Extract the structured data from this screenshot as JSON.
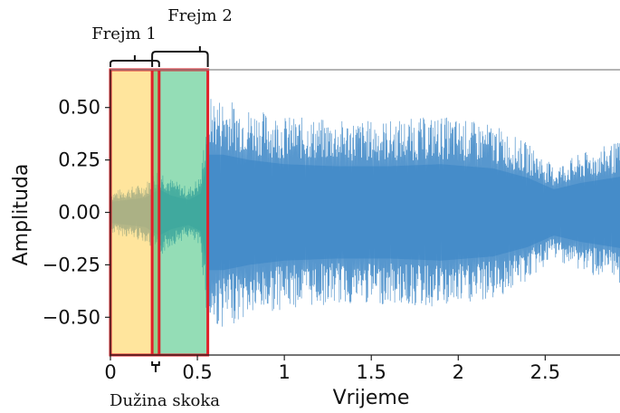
{
  "chart_data": {
    "type": "line",
    "xlabel": "Vrijeme",
    "ylabel": "Amplituda",
    "xlim": [
      0,
      2.93
    ],
    "ylim": [
      -0.68,
      0.68
    ],
    "xticks": [
      {
        "value": 0,
        "label": "0"
      },
      {
        "value": 0.5,
        "label": "0.5"
      },
      {
        "value": 1,
        "label": "1"
      },
      {
        "value": 1.5,
        "label": "1.5"
      },
      {
        "value": 2,
        "label": "2"
      },
      {
        "value": 2.5,
        "label": "2.5"
      }
    ],
    "yticks": [
      {
        "value": 0.5,
        "label": "0.50"
      },
      {
        "value": 0.25,
        "label": "0.25"
      },
      {
        "value": 0,
        "label": "0.00"
      },
      {
        "value": -0.25,
        "label": "−0.25"
      },
      {
        "value": -0.5,
        "label": "−0.50"
      }
    ],
    "waveform": {
      "color": "#3a85c6",
      "envelope": [
        {
          "t": 0.0,
          "amp": 0.1
        },
        {
          "t": 0.1,
          "amp": 0.12
        },
        {
          "t": 0.2,
          "amp": 0.14
        },
        {
          "t": 0.28,
          "amp": 0.22
        },
        {
          "t": 0.35,
          "amp": 0.16
        },
        {
          "t": 0.45,
          "amp": 0.12
        },
        {
          "t": 0.52,
          "amp": 0.18
        },
        {
          "t": 0.56,
          "amp": 0.55
        },
        {
          "t": 0.65,
          "amp": 0.55
        },
        {
          "t": 0.8,
          "amp": 0.5
        },
        {
          "t": 1.0,
          "amp": 0.46
        },
        {
          "t": 1.3,
          "amp": 0.44
        },
        {
          "t": 1.6,
          "amp": 0.44
        },
        {
          "t": 1.9,
          "amp": 0.46
        },
        {
          "t": 2.2,
          "amp": 0.42
        },
        {
          "t": 2.4,
          "amp": 0.33
        },
        {
          "t": 2.55,
          "amp": 0.22
        },
        {
          "t": 2.7,
          "amp": 0.28
        },
        {
          "t": 2.93,
          "amp": 0.34
        }
      ]
    },
    "frames": [
      {
        "name": "Frejm 1",
        "x_start": 0.0,
        "x_end": 0.28,
        "fill": "#ffd04d"
      },
      {
        "name": "Frejm 2",
        "x_start": 0.24,
        "x_end": 0.56,
        "fill": "#3cc17a"
      }
    ],
    "frame_border_color": "#e0202a",
    "hop_label": "Dužina skoka"
  }
}
